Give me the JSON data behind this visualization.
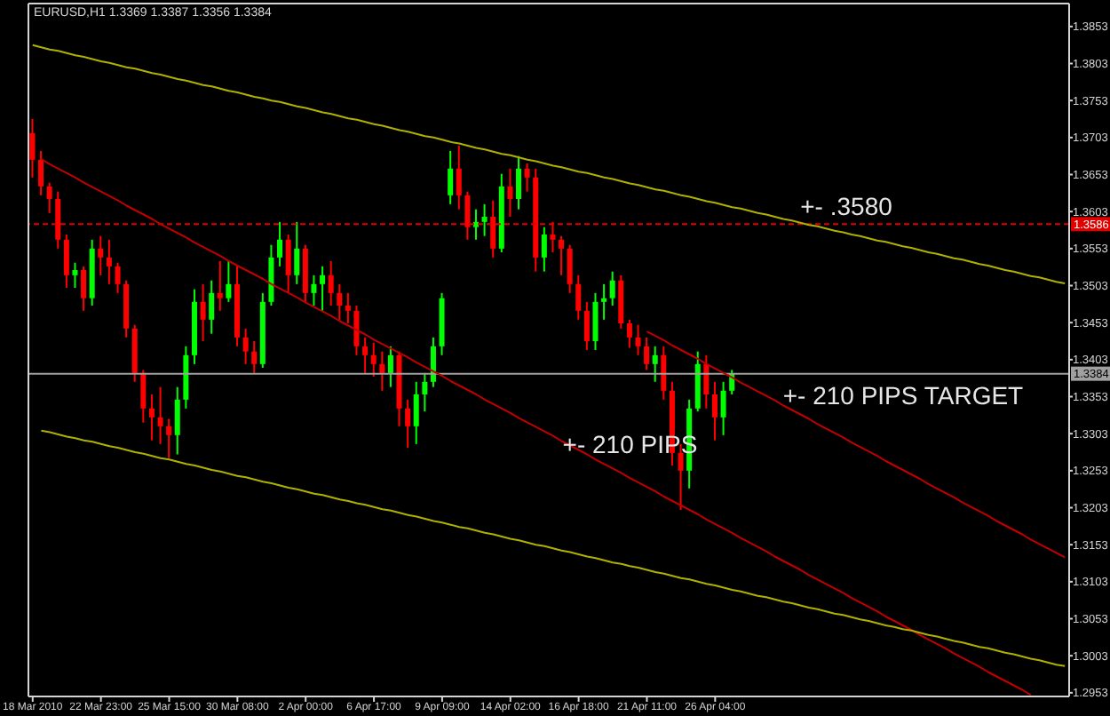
{
  "chart_data": {
    "type": "candlestick",
    "title": "EURUSD,H1 1.3369 1.3387 1.3356 1.3384",
    "categories": [
      "18 Mar 2010",
      null,
      null,
      null,
      null,
      null,
      null,
      null,
      "22 Mar 23:00",
      null,
      null,
      null,
      null,
      null,
      null,
      null,
      "25 Mar 15:00",
      null,
      null,
      null,
      null,
      null,
      null,
      null,
      "30 Mar 08:00",
      null,
      null,
      null,
      null,
      null,
      null,
      null,
      "2 Apr 00:00",
      null,
      null,
      null,
      null,
      null,
      null,
      null,
      "6 Apr 17:00",
      null,
      null,
      null,
      null,
      null,
      null,
      null,
      "9 Apr 09:00",
      null,
      null,
      null,
      null,
      null,
      null,
      null,
      "14 Apr 02:00",
      null,
      null,
      null,
      null,
      null,
      null,
      null,
      "16 Apr 18:00",
      null,
      null,
      null,
      null,
      null,
      null,
      null,
      "21 Apr 11:00",
      null,
      null,
      null,
      null,
      null,
      null,
      null,
      "26 Apr 04:00",
      null,
      null,
      null,
      null,
      null,
      null,
      null,
      null,
      null,
      null,
      null,
      null,
      null,
      null,
      null,
      null,
      null,
      null,
      null,
      null,
      null,
      null,
      null,
      null,
      null,
      null,
      null,
      null,
      null,
      null,
      null,
      null,
      null,
      null,
      null,
      null,
      null,
      null,
      null,
      null,
      null
    ],
    "ohlc": [
      [
        1.3709,
        1.3728,
        1.3649,
        1.3673
      ],
      [
        1.3673,
        1.3685,
        1.3625,
        1.3637
      ],
      [
        1.3637,
        1.3642,
        1.3601,
        1.362
      ],
      [
        1.362,
        1.363,
        1.3553,
        1.3565
      ],
      [
        1.3565,
        1.3572,
        1.35,
        1.3517
      ],
      [
        1.3517,
        1.3534,
        1.35,
        1.3524
      ],
      [
        1.3524,
        1.3529,
        1.3469,
        1.3486
      ],
      [
        1.3486,
        1.3565,
        1.3476,
        1.3553
      ],
      [
        1.3553,
        1.357,
        1.3517,
        1.3541
      ],
      [
        1.3541,
        1.3565,
        1.3505,
        1.3529
      ],
      [
        1.3529,
        1.3534,
        1.3493,
        1.3505
      ],
      [
        1.3505,
        1.351,
        1.3433,
        1.3445
      ],
      [
        1.3445,
        1.345,
        1.3373,
        1.3385
      ],
      [
        1.3385,
        1.3389,
        1.3318,
        1.3337
      ],
      [
        1.3337,
        1.3356,
        1.3294,
        1.3325
      ],
      [
        1.3325,
        1.3366,
        1.3289,
        1.3313
      ],
      [
        1.3313,
        1.3323,
        1.327,
        1.3301
      ],
      [
        1.3301,
        1.3366,
        1.3275,
        1.3349
      ],
      [
        1.3349,
        1.3421,
        1.3337,
        1.3409
      ],
      [
        1.3409,
        1.3498,
        1.3397,
        1.3481
      ],
      [
        1.3481,
        1.3505,
        1.3428,
        1.3457
      ],
      [
        1.3457,
        1.351,
        1.3438,
        1.3493
      ],
      [
        1.3493,
        1.3536,
        1.3469,
        1.3486
      ],
      [
        1.3486,
        1.3536,
        1.3481,
        1.3505
      ],
      [
        1.3505,
        1.3529,
        1.3421,
        1.3433
      ],
      [
        1.3433,
        1.3445,
        1.3397,
        1.3414
      ],
      [
        1.3414,
        1.3428,
        1.3385,
        1.3397
      ],
      [
        1.3397,
        1.3493,
        1.3392,
        1.3481
      ],
      [
        1.3481,
        1.3558,
        1.3476,
        1.3541
      ],
      [
        1.3541,
        1.3589,
        1.3529,
        1.3565
      ],
      [
        1.3565,
        1.3572,
        1.3493,
        1.3517
      ],
      [
        1.3517,
        1.3589,
        1.3505,
        1.3553
      ],
      [
        1.3553,
        1.3558,
        1.3481,
        1.3493
      ],
      [
        1.3493,
        1.3517,
        1.3476,
        1.3505
      ],
      [
        1.3505,
        1.3529,
        1.3469,
        1.3517
      ],
      [
        1.3517,
        1.3536,
        1.3476,
        1.3493
      ],
      [
        1.3493,
        1.3505,
        1.3457,
        1.3476
      ],
      [
        1.3476,
        1.3493,
        1.3452,
        1.3469
      ],
      [
        1.3469,
        1.3476,
        1.3409,
        1.3421
      ],
      [
        1.3421,
        1.3433,
        1.3385,
        1.3409
      ],
      [
        1.3409,
        1.3426,
        1.338,
        1.3397
      ],
      [
        1.3397,
        1.3414,
        1.3361,
        1.3385
      ],
      [
        1.3385,
        1.3421,
        1.3366,
        1.3409
      ],
      [
        1.3409,
        1.3414,
        1.3313,
        1.3337
      ],
      [
        1.3337,
        1.3349,
        1.3284,
        1.3313
      ],
      [
        1.3313,
        1.3373,
        1.3289,
        1.3356
      ],
      [
        1.3356,
        1.3385,
        1.3333,
        1.3373
      ],
      [
        1.3373,
        1.3433,
        1.3366,
        1.3421
      ],
      [
        1.3421,
        1.3493,
        1.3409,
        1.3486
      ],
      [
        1.3625,
        1.3685,
        1.3613,
        1.3661
      ],
      [
        1.3661,
        1.3692,
        1.3606,
        1.3625
      ],
      [
        1.3625,
        1.363,
        1.3565,
        1.3582
      ],
      [
        1.3582,
        1.3606,
        1.3565,
        1.3589
      ],
      [
        1.3589,
        1.3613,
        1.357,
        1.3596
      ],
      [
        1.3596,
        1.3618,
        1.3541,
        1.3553
      ],
      [
        1.3553,
        1.3654,
        1.3548,
        1.3637
      ],
      [
        1.3637,
        1.3661,
        1.3596,
        1.362
      ],
      [
        1.362,
        1.3678,
        1.3606,
        1.3661
      ],
      [
        1.3661,
        1.3668,
        1.363,
        1.3649
      ],
      [
        1.3649,
        1.3661,
        1.3522,
        1.3541
      ],
      [
        1.3541,
        1.3582,
        1.3522,
        1.3572
      ],
      [
        1.3572,
        1.3589,
        1.3548,
        1.3565
      ],
      [
        1.3565,
        1.357,
        1.3517,
        1.3553
      ],
      [
        1.3553,
        1.3558,
        1.3493,
        1.3505
      ],
      [
        1.3505,
        1.3517,
        1.3457,
        1.3469
      ],
      [
        1.3469,
        1.3481,
        1.3416,
        1.3428
      ],
      [
        1.3428,
        1.3493,
        1.3416,
        1.3481
      ],
      [
        1.3481,
        1.3505,
        1.3457,
        1.3486
      ],
      [
        1.3486,
        1.3522,
        1.3476,
        1.351
      ],
      [
        1.351,
        1.3517,
        1.3445,
        1.3452
      ],
      [
        1.3452,
        1.3457,
        1.3419,
        1.3433
      ],
      [
        1.3433,
        1.345,
        1.3409,
        1.3421
      ],
      [
        1.3421,
        1.3433,
        1.3389,
        1.3397
      ],
      [
        1.3397,
        1.3421,
        1.3373,
        1.3409
      ],
      [
        1.3409,
        1.3421,
        1.3349,
        1.3361
      ],
      [
        1.3361,
        1.3373,
        1.326,
        1.3277
      ],
      [
        1.3277,
        1.3289,
        1.32,
        1.3253
      ],
      [
        1.3253,
        1.3349,
        1.3229,
        1.3337
      ],
      [
        1.3337,
        1.3414,
        1.3333,
        1.3397
      ],
      [
        1.3397,
        1.3409,
        1.3337,
        1.3356
      ],
      [
        1.3356,
        1.3373,
        1.3294,
        1.3325
      ],
      [
        1.3325,
        1.3373,
        1.3301,
        1.3361
      ],
      [
        1.3361,
        1.3389,
        1.3356,
        1.3384
      ],
      null,
      null,
      null,
      null,
      null,
      null,
      null,
      null,
      null,
      null,
      null,
      null,
      null,
      null,
      null,
      null,
      null,
      null,
      null,
      null,
      null,
      null,
      null,
      null,
      null,
      null,
      null,
      null,
      null,
      null,
      null,
      null,
      null,
      null,
      null,
      null,
      null,
      null,
      null
    ],
    "colors": [
      "#ff0000",
      "#ff0000",
      "#ff0000",
      "#ff0000",
      "#ff0000",
      "#00ff00",
      "#ff0000",
      "#00ff00",
      "#ff0000",
      "#ff0000",
      "#ff0000",
      "#ff0000",
      "#ff0000",
      "#ff0000",
      "#ff0000",
      "#ff0000",
      "#ff0000",
      "#00ff00",
      "#00ff00",
      "#00ff00",
      "#ff0000",
      "#00ff00",
      "#ff0000",
      "#00ff00",
      "#ff0000",
      "#ff0000",
      "#ff0000",
      "#00ff00",
      "#00ff00",
      "#00ff00",
      "#ff0000",
      "#00ff00",
      "#ff0000",
      "#00ff00",
      "#00ff00",
      "#ff0000",
      "#ff0000",
      "#ff0000",
      "#ff0000",
      "#ff0000",
      "#ff0000",
      "#ff0000",
      "#00ff00",
      "#ff0000",
      "#ff0000",
      "#00ff00",
      "#00ff00",
      "#00ff00",
      "#00ff00",
      "#00ff00",
      "#ff0000",
      "#ff0000",
      "#00ff00",
      "#00ff00",
      "#ff0000",
      "#00ff00",
      "#ff0000",
      "#00ff00",
      "#ff0000",
      "#ff0000",
      "#00ff00",
      "#ff0000",
      "#ff0000",
      "#ff0000",
      "#ff0000",
      "#ff0000",
      "#00ff00",
      "#00ff00",
      "#00ff00",
      "#ff0000",
      "#ff0000",
      "#ff0000",
      "#ff0000",
      "#00ff00",
      "#ff0000",
      "#ff0000",
      "#ff0000",
      "#00ff00",
      "#00ff00",
      "#ff0000",
      "#ff0000",
      "#00ff00",
      "#00ff00",
      null,
      null,
      null,
      null,
      null,
      null,
      null,
      null,
      null,
      null,
      null,
      null,
      null,
      null,
      null,
      null,
      null,
      null,
      null,
      null,
      null,
      null,
      null,
      null,
      null,
      null,
      null,
      null,
      null,
      null,
      null,
      null,
      null,
      null,
      null,
      null,
      null,
      null,
      null
    ],
    "series": [
      {
        "type": "line",
        "color": "#b0b000",
        "values": [
          1.3828,
          1.3825,
          1.3822,
          1.382,
          1.3817,
          1.3814,
          1.3812,
          1.3809,
          1.3806,
          1.3804,
          1.3801,
          1.3798,
          1.3796,
          1.3793,
          1.379,
          1.3788,
          1.3785,
          1.3782,
          1.378,
          1.3777,
          1.3774,
          1.3772,
          1.3769,
          1.3766,
          1.3764,
          1.3761,
          1.3758,
          1.3756,
          1.3753,
          1.3751,
          1.3748,
          1.3745,
          1.3743,
          1.374,
          1.3737,
          1.3735,
          1.3732,
          1.3729,
          1.3727,
          1.3724,
          1.3721,
          1.3719,
          1.3716,
          1.3713,
          1.3711,
          1.3708,
          1.3705,
          1.3703,
          1.37,
          1.3697,
          1.3695,
          1.3692,
          1.3689,
          1.3687,
          1.3684,
          1.3681,
          1.3679,
          1.3676,
          1.3673,
          1.3671,
          1.3668,
          1.3665,
          1.3663,
          1.366,
          1.3657,
          1.3655,
          1.3652,
          1.3649,
          1.3647,
          1.3644,
          1.3641,
          1.3639,
          1.3636,
          1.3633,
          1.3631,
          1.3628,
          1.3625,
          1.3623,
          1.362,
          1.3617,
          1.3615,
          1.3612,
          1.3609,
          1.3607,
          1.3604,
          1.3601,
          1.3599,
          1.3596,
          1.3593,
          1.3591,
          1.3588,
          1.3585,
          1.3583,
          1.358,
          1.3577,
          1.3575,
          1.3572,
          1.357,
          1.3567,
          1.3564,
          1.3562,
          1.3559,
          1.3556,
          1.3554,
          1.3551,
          1.3548,
          1.3546,
          1.3543,
          1.354,
          1.3538,
          1.3535,
          1.3532,
          1.353,
          1.3527,
          1.3524,
          1.3522,
          1.3519,
          1.3516,
          1.3514,
          1.3511,
          1.3508,
          1.3506
        ]
      },
      {
        "type": "line",
        "color": "#c00000",
        "values": [
          null,
          1.3674,
          1.3667,
          1.3661,
          1.3655,
          1.3649,
          1.3642,
          1.3636,
          1.363,
          1.3624,
          1.3618,
          1.3611,
          1.3605,
          1.3599,
          1.3593,
          1.3586,
          1.358,
          1.3574,
          1.3568,
          1.3561,
          1.3555,
          1.3549,
          1.3543,
          1.3536,
          1.353,
          1.3524,
          1.3518,
          1.3512,
          1.3505,
          1.3499,
          1.3493,
          1.3487,
          1.348,
          1.3474,
          1.3468,
          1.3462,
          1.3455,
          1.3449,
          1.3443,
          1.3437,
          1.343,
          1.3424,
          1.3418,
          1.3412,
          1.3406,
          1.3399,
          1.3393,
          1.3387,
          1.3381,
          1.3374,
          1.3368,
          1.3362,
          1.3356,
          1.3349,
          1.3343,
          1.3337,
          1.3331,
          1.3324,
          1.3318,
          1.3312,
          1.3306,
          1.33,
          1.3293,
          1.3287,
          1.3281,
          1.3275,
          1.3268,
          1.3262,
          1.3256,
          1.325,
          1.3243,
          1.3237,
          1.3231,
          1.3225,
          1.3218,
          1.3212,
          1.3206,
          1.32,
          1.3194,
          1.3187,
          1.3181,
          1.3175,
          1.3169,
          1.3162,
          1.3156,
          1.315,
          1.3144,
          1.3137,
          1.3131,
          1.3125,
          1.3119,
          1.3112,
          1.3106,
          1.31,
          1.3094,
          1.3088,
          1.3081,
          1.3075,
          1.3069,
          1.3063,
          1.3056,
          1.305,
          1.3044,
          1.3038,
          1.3031,
          1.3025,
          1.3019,
          1.3013,
          1.3006,
          1.3,
          1.2994,
          1.2988,
          1.2981,
          1.2975,
          1.2969,
          1.2963,
          1.2957,
          1.295,
          null,
          null,
          null,
          null
        ]
      },
      {
        "type": "line",
        "color": "#c00000",
        "values": [
          null,
          null,
          null,
          null,
          null,
          null,
          null,
          null,
          null,
          null,
          null,
          null,
          null,
          null,
          null,
          null,
          null,
          null,
          null,
          null,
          null,
          null,
          null,
          null,
          null,
          null,
          null,
          null,
          null,
          null,
          null,
          null,
          null,
          null,
          null,
          null,
          null,
          null,
          null,
          null,
          null,
          null,
          null,
          null,
          null,
          null,
          null,
          null,
          null,
          null,
          null,
          null,
          null,
          null,
          null,
          null,
          null,
          null,
          null,
          null,
          null,
          null,
          null,
          null,
          null,
          null,
          null,
          null,
          null,
          null,
          null,
          null,
          1.3441,
          1.3435,
          1.3429,
          1.3422,
          1.3416,
          1.341,
          1.3404,
          1.3397,
          1.3391,
          1.3385,
          1.3379,
          1.3372,
          1.3366,
          1.336,
          1.3354,
          1.3348,
          1.3341,
          1.3335,
          1.3329,
          1.3323,
          1.3316,
          1.331,
          1.3304,
          1.3298,
          1.3291,
          1.3285,
          1.3279,
          1.3273,
          1.3266,
          1.326,
          1.3254,
          1.3248,
          1.3242,
          1.3235,
          1.3229,
          1.3223,
          1.3217,
          1.321,
          1.3204,
          1.3198,
          1.3192,
          1.3185,
          1.3179,
          1.3173,
          1.3167,
          1.316,
          1.3154,
          1.3148,
          1.3142,
          1.3136
        ]
      },
      {
        "type": "line",
        "color": "#b0b000",
        "values": [
          null,
          1.3307,
          1.3305,
          1.3302,
          1.3299,
          1.3297,
          1.3294,
          1.3292,
          1.3289,
          1.3286,
          1.3284,
          1.3281,
          1.3278,
          1.3276,
          1.3273,
          1.327,
          1.3268,
          1.3265,
          1.3262,
          1.326,
          1.3257,
          1.3254,
          1.3252,
          1.3249,
          1.3246,
          1.3244,
          1.3241,
          1.3238,
          1.3236,
          1.3233,
          1.323,
          1.3228,
          1.3225,
          1.3222,
          1.322,
          1.3217,
          1.3214,
          1.3212,
          1.3209,
          1.3207,
          1.3204,
          1.3201,
          1.3199,
          1.3196,
          1.3193,
          1.3191,
          1.3188,
          1.3185,
          1.3183,
          1.318,
          1.3177,
          1.3175,
          1.3172,
          1.3169,
          1.3167,
          1.3164,
          1.3161,
          1.3159,
          1.3156,
          1.3153,
          1.3151,
          1.3148,
          1.3145,
          1.3143,
          1.314,
          1.3137,
          1.3135,
          1.3132,
          1.3129,
          1.3127,
          1.3124,
          1.3122,
          1.3119,
          1.3116,
          1.3114,
          1.3111,
          1.3108,
          1.3106,
          1.3103,
          1.31,
          1.3098,
          1.3095,
          1.3092,
          1.309,
          1.3087,
          1.3084,
          1.3082,
          1.3079,
          1.3076,
          1.3074,
          1.3071,
          1.3068,
          1.3066,
          1.3063,
          1.306,
          1.3058,
          1.3055,
          1.3052,
          1.305,
          1.3047,
          1.3044,
          1.3042,
          1.3039,
          1.3037,
          1.3034,
          1.3031,
          1.3029,
          1.3026,
          1.3023,
          1.3021,
          1.3018,
          1.3015,
          1.3013,
          1.301,
          1.3007,
          1.3005,
          1.3002,
          1.2999,
          1.2997,
          1.2994,
          1.2991,
          1.2989
        ]
      }
    ],
    "ylim": [
      1.2948,
      1.3884
    ],
    "yticks": [
      1.2953,
      1.3003,
      1.3053,
      1.3103,
      1.3153,
      1.3203,
      1.3253,
      1.3303,
      1.3353,
      1.3403,
      1.3453,
      1.3503,
      1.3553,
      1.3603,
      1.3653,
      1.3703,
      1.3753,
      1.3803,
      1.3853
    ],
    "ref_lines": [
      {
        "axis": "y",
        "value": 1.3586,
        "label": "1.3586",
        "color": "#e00000",
        "line_style": "dashed"
      },
      {
        "axis": "y",
        "value": 1.3384,
        "label": "1.3384",
        "color": "#a0a0a0"
      }
    ],
    "annotations": [
      {
        "text": "+- .3580",
        "y": 1.3586
      },
      {
        "text": "+- 210 PIPS TARGET",
        "y": 1.3384
      },
      "+- 210 PIPS"
    ]
  }
}
